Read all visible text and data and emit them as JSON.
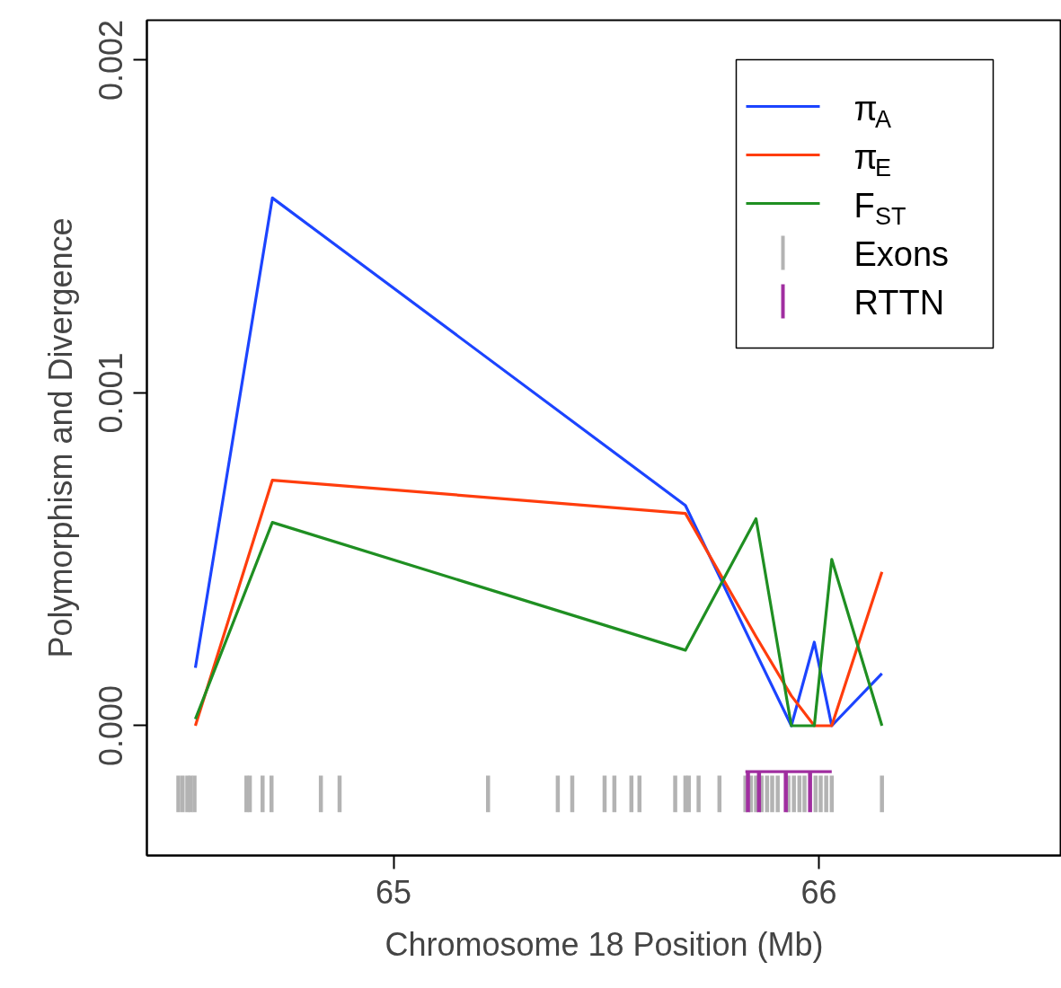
{
  "chart_data": {
    "type": "line",
    "xlabel": "Chromosome 18 Position (Mb)",
    "ylabel": "Polymorphism and Divergence",
    "xlim": [
      64.42,
      66.57
    ],
    "ylim": [
      -0.00039,
      0.00212
    ],
    "xticks": [
      65,
      66
    ],
    "yticks": [
      {
        "value": 0,
        "label": "0.000"
      },
      {
        "value": 0.001,
        "label": "0.001"
      },
      {
        "value": 0.002,
        "label": "0.002"
      }
    ],
    "legend": "top right",
    "x": [
      64.534,
      64.715,
      65.686,
      65.852,
      65.935,
      65.989,
      66.03,
      66.148
    ],
    "series": [
      {
        "name": "π$_{A}$",
        "color": "#1c44ff",
        "values": [
          0.000174,
          0.001586,
          0.000662,
          0.000219,
          0,
          0.000251,
          0,
          0.000157
        ]
      },
      {
        "name": "π$_{E}$",
        "color": "#ff3d0d",
        "values": [
          0,
          0.000738,
          0.000638,
          0.000268,
          9e-05,
          0,
          0,
          0.000462
        ]
      },
      {
        "name": "F$_{ST}$",
        "color": "#1f8f22",
        "values": [
          2e-05,
          0.000611,
          0.000227,
          0.000622,
          0,
          0,
          0.0005,
          0
        ]
      },
      {
        "name": "Exons",
        "type": "bar",
        "color": "#b3b3b3",
        "x": [
          64.494,
          64.504,
          64.515,
          64.523,
          64.532,
          64.654,
          64.662,
          64.692,
          64.713,
          64.829,
          64.873,
          65.222,
          65.386,
          65.42,
          65.496,
          65.519,
          65.559,
          65.578,
          65.662,
          65.686,
          65.694,
          65.717,
          65.766,
          65.827,
          65.84,
          65.852,
          65.865,
          65.878,
          65.89,
          65.903,
          65.928,
          65.941,
          65.954,
          65.966,
          65.992,
          66.004,
          66.017,
          66.03,
          66.148
        ],
        "base": [
          -0.00026,
          -0.00026,
          -0.00026,
          -0.00026,
          -0.00026,
          -0.00026,
          -0.00026,
          -0.00026,
          -0.00026,
          -0.00026,
          -0.00026,
          -0.00026,
          -0.00026,
          -0.00026,
          -0.00026,
          -0.00026,
          -0.00026,
          -0.00026,
          -0.00026,
          -0.00026,
          -0.00026,
          -0.00026,
          -0.00026,
          -0.00026,
          -0.00026,
          -0.00026,
          -0.00026,
          -0.00026,
          -0.00026,
          -0.00026,
          -0.00026,
          -0.00026,
          -0.00026,
          -0.00026,
          -0.00026,
          -0.00026,
          -0.00026,
          -0.00026,
          -0.00026
        ],
        "values": [
          0.00011,
          0.00011,
          0.00011,
          0.00011,
          0.00011,
          0.00011,
          0.00011,
          0.00011,
          0.00011,
          0.00011,
          0.00011,
          0.00011,
          0.00011,
          0.00011,
          0.00011,
          0.00011,
          0.00011,
          0.00011,
          0.00011,
          0.00011,
          0.00011,
          0.00011,
          0.00011,
          0.00011,
          0.00011,
          0.00011,
          0.00011,
          0.00011,
          0.00011,
          0.00011,
          0.00011,
          0.00011,
          0.00011,
          0.00011,
          0.00011,
          0.00011,
          0.00011,
          0.00011,
          0.00011
        ]
      },
      {
        "name": "RTTN",
        "type": "bar",
        "color": "#a02ea0",
        "x": [
          65.833,
          65.859,
          65.922,
          65.979
        ],
        "base": [
          -0.00026,
          -0.00026,
          -0.00026,
          -0.00026
        ],
        "values": [
          0.000122,
          0.000122,
          0.000122,
          0.000122
        ]
      },
      {
        "type": "line",
        "color": "#a02ea0",
        "x": [
          65.827,
          66.03
        ],
        "values": [
          -0.000138,
          -0.000138
        ]
      }
    ]
  }
}
